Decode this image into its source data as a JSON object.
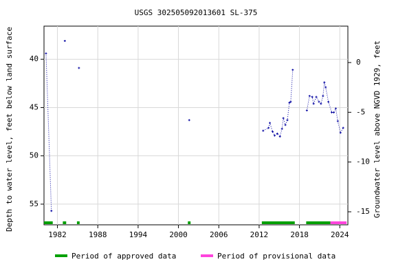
{
  "chart_data": {
    "type": "line",
    "title": "USGS 302505092013601 SL-375",
    "y_label": "Depth to water level, feet below land surface",
    "y2_label": "Groundwater level above NGVD 1929, feet",
    "xlim": [
      1980,
      2025.2
    ],
    "xticks": [
      1982,
      1988,
      1994,
      2000,
      2006,
      2012,
      2018,
      2024
    ],
    "ylim": [
      57.14,
      36.57
    ],
    "yticks": [
      40,
      45,
      50,
      55
    ],
    "y2lim": [
      -16.31,
      3.66
    ],
    "y2ticks": [
      0,
      -5,
      -10,
      -15
    ],
    "grid": true,
    "x": [
      1980.3,
      1981.1,
      null,
      1983.1,
      null,
      1985.2,
      null,
      2001.6,
      null,
      2012.6,
      2013.4,
      2013.6,
      2014.0,
      2014.3,
      2014.7,
      2015.1,
      2015.4,
      2015.6,
      2015.9,
      2016.2,
      2016.5,
      2016.7,
      2017.0,
      null,
      2019.1,
      2019.5,
      2019.9,
      2020.1,
      2020.5,
      2020.9,
      2021.2,
      2021.5,
      2021.7,
      2021.9,
      2022.3,
      2022.8,
      2023.1,
      2023.4,
      2023.7,
      2024.1,
      2024.5
    ],
    "series": [
      {
        "name": "Depth to water level",
        "color": "#0000a0",
        "values": [
          39.4,
          55.7,
          null,
          38.1,
          null,
          40.9,
          null,
          46.3,
          null,
          47.4,
          47.1,
          46.6,
          47.5,
          47.9,
          47.7,
          48.0,
          47.2,
          46.1,
          46.8,
          46.3,
          44.5,
          44.4,
          41.1,
          null,
          45.3,
          43.8,
          43.9,
          44.6,
          43.9,
          44.4,
          44.6,
          43.8,
          42.4,
          42.9,
          44.4,
          45.5,
          45.5,
          45.1,
          46.4,
          47.6,
          47.1
        ]
      }
    ],
    "periods": [
      {
        "name": "Period of approved data",
        "color": "#00a000",
        "ranges": [
          [
            1980,
            1981.3
          ],
          [
            1982.8,
            1983.3
          ],
          [
            1984.9,
            1985.3
          ],
          [
            2001.4,
            2001.8
          ],
          [
            2012.4,
            2017.3
          ],
          [
            2019.0,
            2022.6
          ]
        ]
      },
      {
        "name": "Period of provisional data",
        "color": "#ff44dd",
        "ranges": [
          [
            2022.6,
            2025.0
          ]
        ]
      }
    ]
  }
}
